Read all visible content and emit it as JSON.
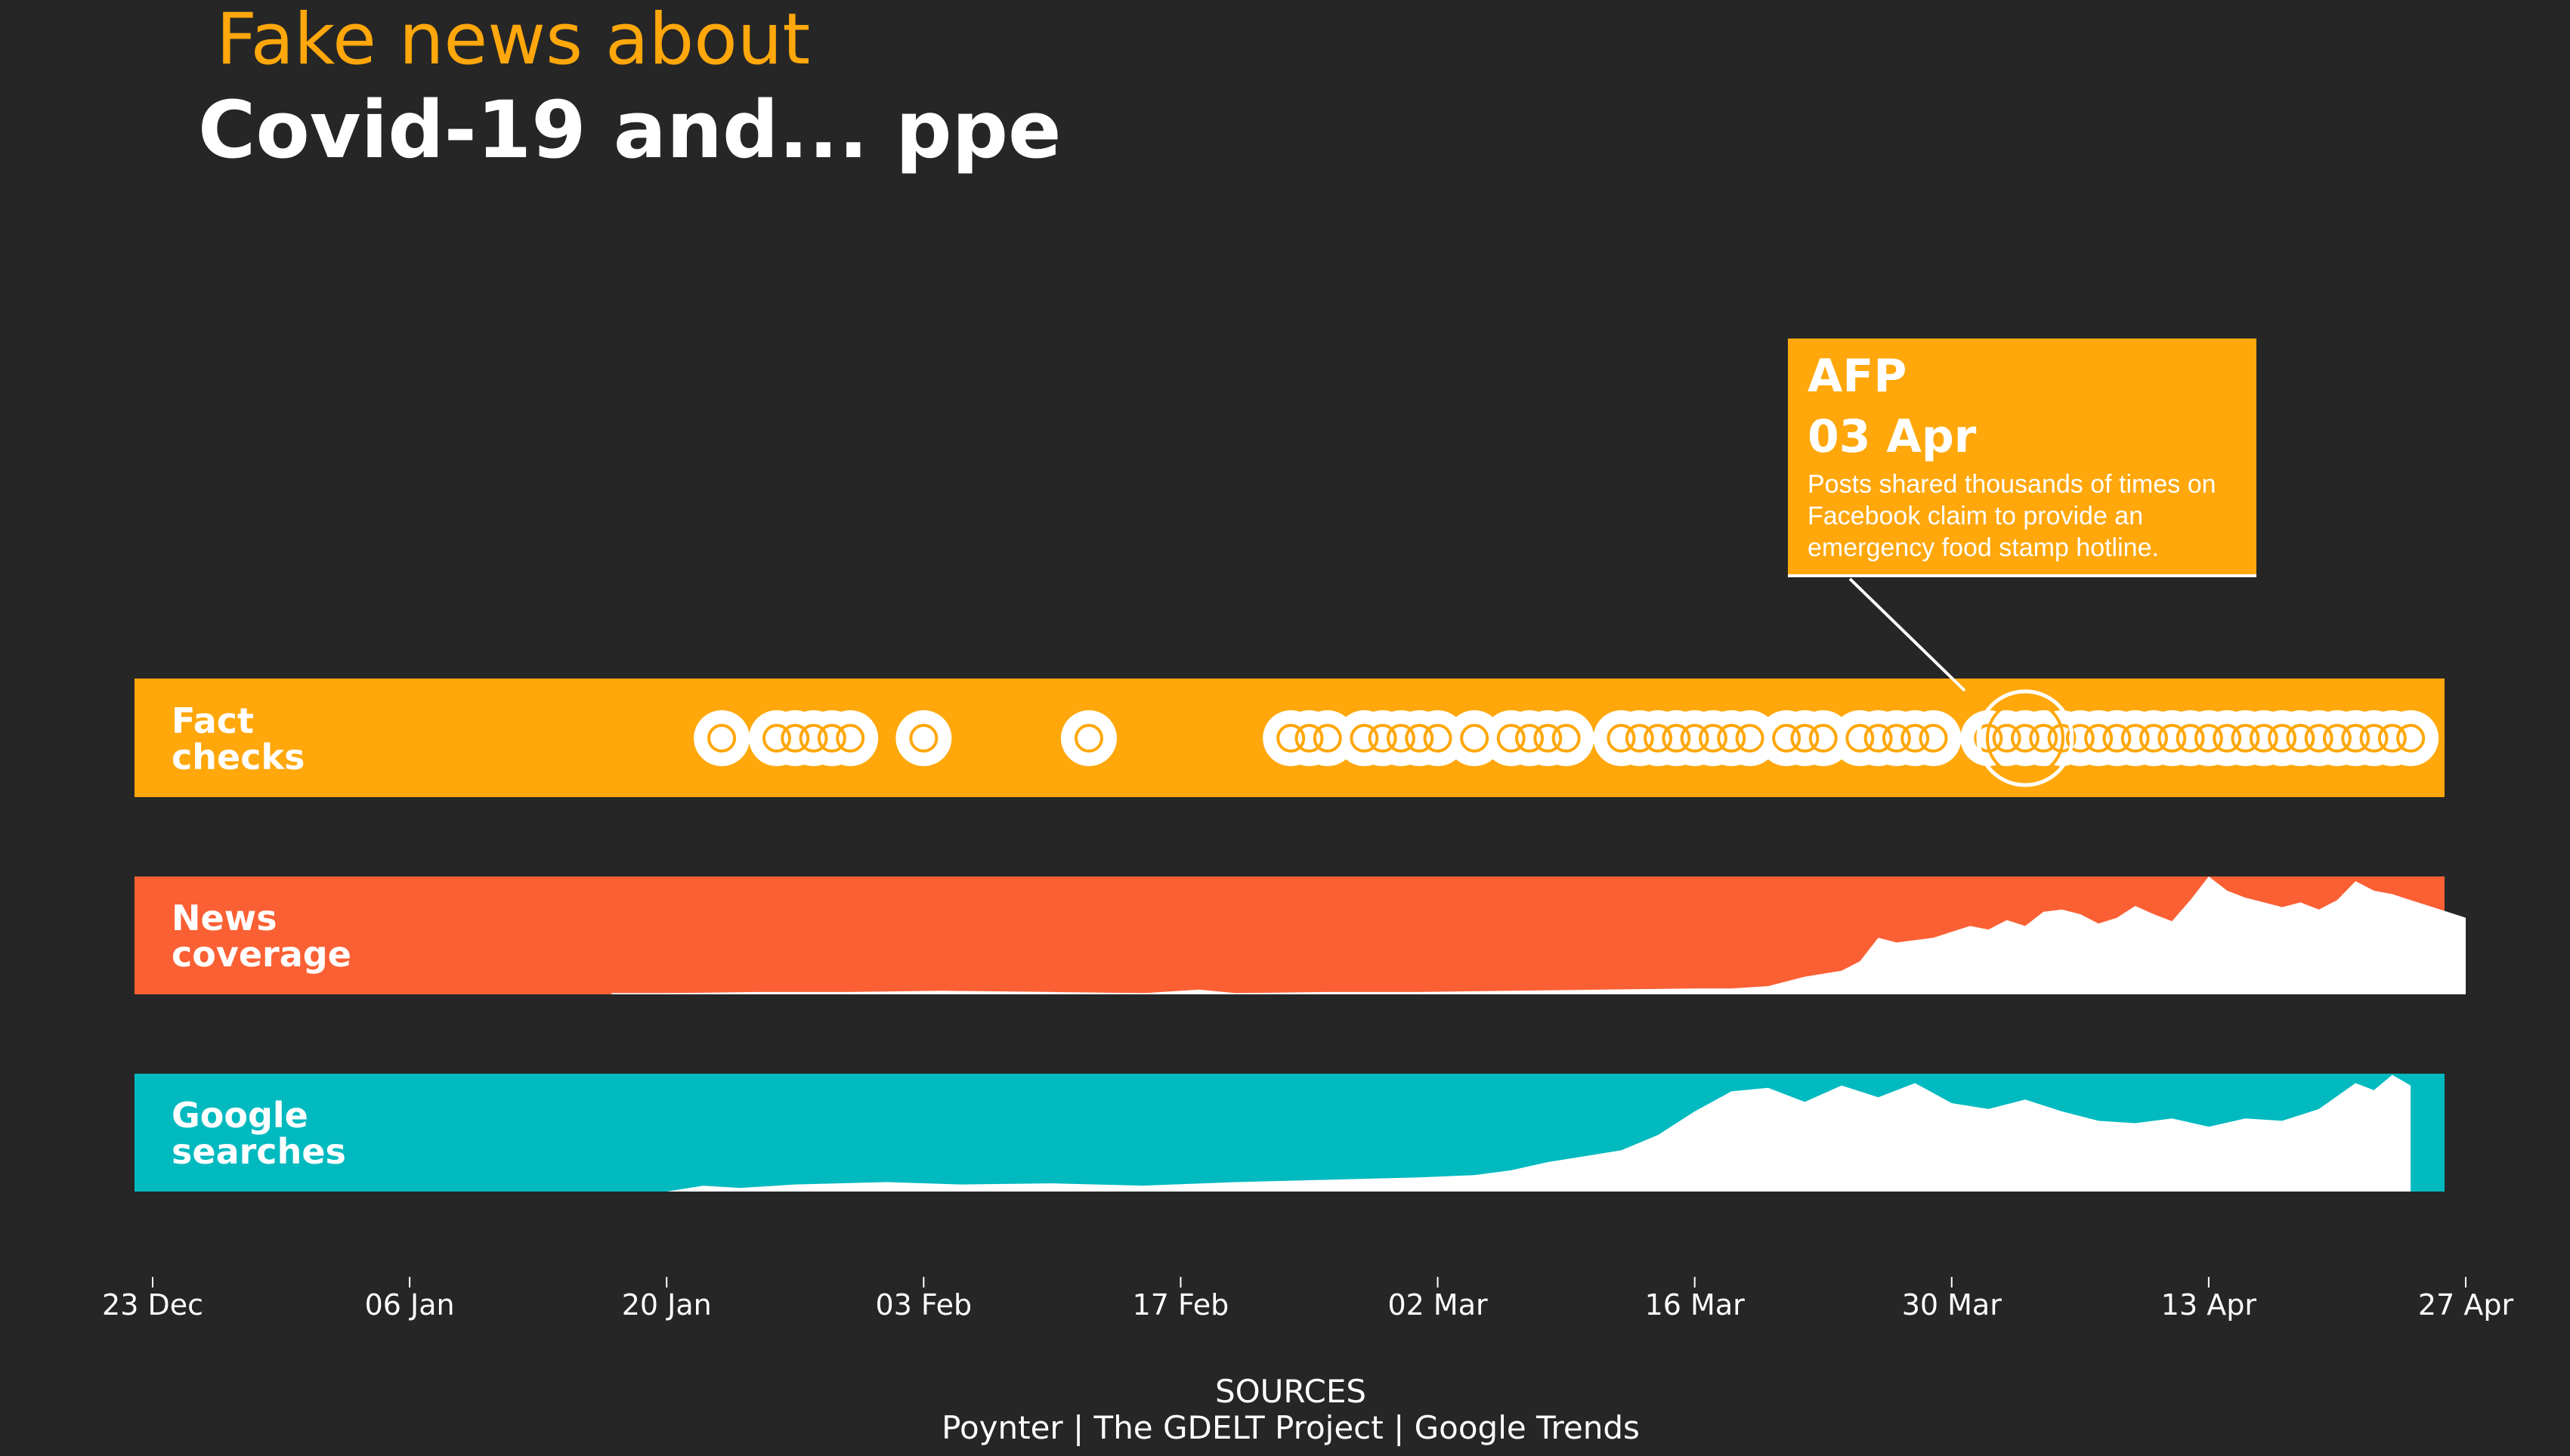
{
  "title": {
    "line1": "Fake news about",
    "line2": "Covid-19 and... ppe"
  },
  "colors": {
    "background": "#262626",
    "fact_checks": "#FFA70B",
    "news_coverage": "#FA6034",
    "google_searches": "#00BABF",
    "marks": "#FFFFFF"
  },
  "bands": {
    "fact_checks": {
      "label_line1": "Fact",
      "label_line2": "checks"
    },
    "news_coverage": {
      "label_line1": "News",
      "label_line2": "coverage"
    },
    "google_searches": {
      "label_line1": "Google",
      "label_line2": "searches"
    }
  },
  "tooltip": {
    "source": "AFP",
    "date": "03 Apr",
    "text_lines": [
      "Posts shared thousands of times on",
      "Facebook claim to provide an",
      "emergency food stamp hotline."
    ]
  },
  "axis": {
    "ticks": [
      "23 Dec",
      "06 Jan",
      "20 Jan",
      "03 Feb",
      "17 Feb",
      "02 Mar",
      "16 Mar",
      "30 Mar",
      "13 Apr",
      "27 Apr"
    ]
  },
  "sources": {
    "title": "SOURCES",
    "text": "Poynter | The GDELT Project | Google Trends"
  },
  "chart_data": {
    "type": "area",
    "x_range": [
      "2019-12-23",
      "2020-04-27"
    ],
    "fact_checks": {
      "type": "scatter",
      "highlighted": "2020-04-03",
      "dates": [
        "2020-01-23",
        "2020-01-26",
        "2020-01-27",
        "2020-01-28",
        "2020-01-29",
        "2020-01-30",
        "2020-02-03",
        "2020-02-12",
        "2020-02-23",
        "2020-02-24",
        "2020-02-25",
        "2020-02-27",
        "2020-02-28",
        "2020-02-29",
        "2020-03-01",
        "2020-03-02",
        "2020-03-04",
        "2020-03-06",
        "2020-03-07",
        "2020-03-08",
        "2020-03-09",
        "2020-03-12",
        "2020-03-13",
        "2020-03-14",
        "2020-03-15",
        "2020-03-16",
        "2020-03-17",
        "2020-03-18",
        "2020-03-19",
        "2020-03-21",
        "2020-03-22",
        "2020-03-23",
        "2020-03-25",
        "2020-03-26",
        "2020-03-27",
        "2020-03-28",
        "2020-03-29",
        "2020-04-01",
        "2020-04-02",
        "2020-04-03",
        "2020-04-04",
        "2020-04-05",
        "2020-04-06",
        "2020-04-07",
        "2020-04-08",
        "2020-04-09",
        "2020-04-10",
        "2020-04-11",
        "2020-04-12",
        "2020-04-13",
        "2020-04-14",
        "2020-04-15",
        "2020-04-16",
        "2020-04-17",
        "2020-04-18",
        "2020-04-19",
        "2020-04-20",
        "2020-04-21",
        "2020-04-22",
        "2020-04-23",
        "2020-04-24"
      ]
    },
    "news_coverage": {
      "type": "area",
      "ylim": [
        0,
        100
      ],
      "dates": [
        "2020-01-17",
        "2020-01-20",
        "2020-01-25",
        "2020-01-30",
        "2020-02-04",
        "2020-02-10",
        "2020-02-15",
        "2020-02-18",
        "2020-02-20",
        "2020-02-25",
        "2020-03-01",
        "2020-03-06",
        "2020-03-11",
        "2020-03-16",
        "2020-03-18",
        "2020-03-20",
        "2020-03-22",
        "2020-03-24",
        "2020-03-25",
        "2020-03-26",
        "2020-03-27",
        "2020-03-28",
        "2020-03-29",
        "2020-03-30",
        "2020-03-31",
        "2020-04-01",
        "2020-04-02",
        "2020-04-03",
        "2020-04-04",
        "2020-04-05",
        "2020-04-06",
        "2020-04-07",
        "2020-04-08",
        "2020-04-09",
        "2020-04-10",
        "2020-04-11",
        "2020-04-12",
        "2020-04-13",
        "2020-04-14",
        "2020-04-15",
        "2020-04-16",
        "2020-04-17",
        "2020-04-18",
        "2020-04-19",
        "2020-04-20",
        "2020-04-21",
        "2020-04-22",
        "2020-04-23",
        "2020-04-24",
        "2020-04-25",
        "2020-04-26",
        "2020-04-27"
      ],
      "values": [
        1,
        1,
        2,
        2,
        3,
        2,
        1,
        4,
        1,
        2,
        2,
        3,
        4,
        5,
        5,
        7,
        15,
        20,
        28,
        48,
        44,
        46,
        48,
        53,
        58,
        55,
        63,
        58,
        70,
        72,
        68,
        60,
        65,
        75,
        68,
        62,
        80,
        100,
        88,
        82,
        78,
        74,
        78,
        72,
        80,
        96,
        88,
        85,
        80,
        75,
        70,
        65
      ]
    },
    "google_searches": {
      "type": "area",
      "ylim": [
        0,
        100
      ],
      "dates": [
        "2020-01-20",
        "2020-01-22",
        "2020-01-24",
        "2020-01-27",
        "2020-02-01",
        "2020-02-05",
        "2020-02-10",
        "2020-02-15",
        "2020-02-20",
        "2020-02-25",
        "2020-03-01",
        "2020-03-04",
        "2020-03-06",
        "2020-03-08",
        "2020-03-10",
        "2020-03-12",
        "2020-03-14",
        "2020-03-16",
        "2020-03-18",
        "2020-03-20",
        "2020-03-22",
        "2020-03-24",
        "2020-03-26",
        "2020-03-28",
        "2020-03-30",
        "2020-04-01",
        "2020-04-03",
        "2020-04-05",
        "2020-04-07",
        "2020-04-09",
        "2020-04-11",
        "2020-04-13",
        "2020-04-15",
        "2020-04-17",
        "2020-04-19",
        "2020-04-21",
        "2020-04-22",
        "2020-04-23",
        "2020-04-24"
      ],
      "values": [
        0,
        5,
        3,
        6,
        8,
        6,
        7,
        5,
        8,
        10,
        12,
        14,
        18,
        25,
        30,
        35,
        48,
        68,
        85,
        88,
        76,
        90,
        80,
        92,
        75,
        70,
        78,
        68,
        60,
        58,
        62,
        55,
        62,
        60,
        70,
        92,
        86,
        99,
        90
      ]
    }
  }
}
